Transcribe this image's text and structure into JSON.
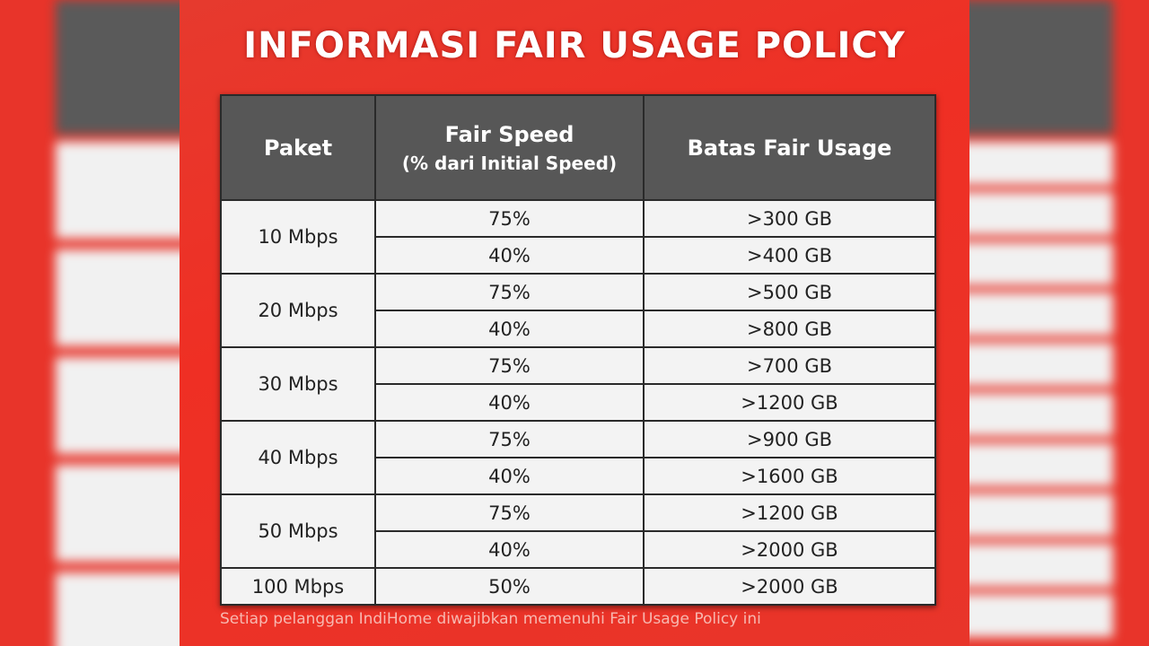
{
  "colors": {
    "background_red": "#e8342a",
    "header_gray": "#575757",
    "cell_white": "#f3f3f3"
  },
  "title": "INFORMASI FAIR USAGE POLICY",
  "table": {
    "headers": {
      "paket": "Paket",
      "fair_speed": "Fair Speed",
      "fair_speed_sub": "(% dari Initial Speed)",
      "batas": "Batas Fair Usage"
    },
    "groups": [
      {
        "paket": "10 Mbps",
        "rows": [
          {
            "speed": "75%",
            "limit": ">300 GB"
          },
          {
            "speed": "40%",
            "limit": ">400 GB"
          }
        ]
      },
      {
        "paket": "20 Mbps",
        "rows": [
          {
            "speed": "75%",
            "limit": ">500 GB"
          },
          {
            "speed": "40%",
            "limit": ">800 GB"
          }
        ]
      },
      {
        "paket": "30 Mbps",
        "rows": [
          {
            "speed": "75%",
            "limit": ">700 GB"
          },
          {
            "speed": "40%",
            "limit": ">1200 GB"
          }
        ]
      },
      {
        "paket": "40 Mbps",
        "rows": [
          {
            "speed": "75%",
            "limit": ">900 GB"
          },
          {
            "speed": "40%",
            "limit": ">1600 GB"
          }
        ]
      },
      {
        "paket": "50 Mbps",
        "rows": [
          {
            "speed": "75%",
            "limit": ">1200 GB"
          },
          {
            "speed": "40%",
            "limit": ">2000 GB"
          }
        ]
      },
      {
        "paket": "100 Mbps",
        "rows": [
          {
            "speed": "50%",
            "limit": ">2000 GB"
          }
        ]
      }
    ]
  },
  "note": "Setiap pelanggan IndiHome diwajibkan memenuhi Fair Usage Policy ini"
}
